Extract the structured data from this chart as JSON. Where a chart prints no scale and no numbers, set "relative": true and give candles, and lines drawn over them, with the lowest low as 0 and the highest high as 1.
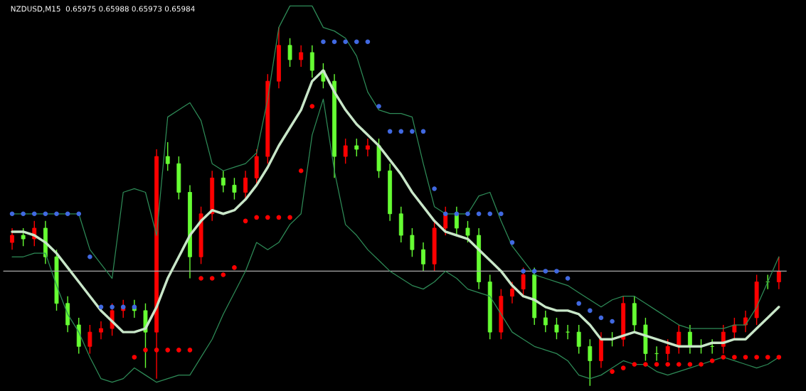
{
  "chart_data": {
    "type": "candlestick",
    "relative": true,
    "title": "NZDUSD,M15  0.65975 0.65988 0.65973 0.65984",
    "grid": false,
    "legend": false,
    "categories": [
      null,
      null,
      null,
      null,
      null,
      null,
      null,
      null,
      null,
      null,
      null,
      null,
      null,
      null,
      null,
      null,
      null,
      null,
      null,
      null,
      null,
      null,
      null,
      null,
      null,
      null,
      null,
      null,
      null,
      null,
      null,
      null,
      null,
      null,
      null,
      null,
      null,
      null,
      null,
      null,
      null,
      null,
      null,
      null,
      null,
      null,
      null,
      null,
      null,
      null,
      null,
      null,
      null,
      null,
      null,
      null,
      null,
      null,
      null,
      null,
      null,
      null,
      null,
      null,
      null,
      null,
      null,
      null,
      null,
      null
    ],
    "ohlc": [
      [
        0.4,
        0.44,
        0.38,
        0.42
      ],
      [
        0.42,
        0.44,
        0.39,
        0.41
      ],
      [
        0.41,
        0.46,
        0.39,
        0.44
      ],
      [
        0.44,
        0.46,
        0.34,
        0.36
      ],
      [
        0.36,
        0.38,
        0.21,
        0.23
      ],
      [
        0.23,
        0.25,
        0.15,
        0.17
      ],
      [
        0.17,
        0.19,
        0.09,
        0.11
      ],
      [
        0.11,
        0.17,
        0.09,
        0.15
      ],
      [
        0.15,
        0.18,
        0.13,
        0.16
      ],
      [
        0.16,
        0.23,
        0.14,
        0.21
      ],
      [
        0.21,
        0.24,
        0.19,
        0.22
      ],
      [
        0.22,
        0.24,
        0.19,
        0.21
      ],
      [
        0.21,
        0.23,
        0.05,
        0.15
      ],
      [
        0.15,
        0.66,
        0.02,
        0.64
      ],
      [
        0.64,
        0.68,
        0.6,
        0.62
      ],
      [
        0.62,
        0.64,
        0.52,
        0.54
      ],
      [
        0.54,
        0.56,
        0.3,
        0.36
      ],
      [
        0.36,
        0.5,
        0.34,
        0.48
      ],
      [
        0.48,
        0.6,
        0.46,
        0.58
      ],
      [
        0.58,
        0.6,
        0.54,
        0.56
      ],
      [
        0.56,
        0.58,
        0.52,
        0.54
      ],
      [
        0.54,
        0.6,
        0.52,
        0.58
      ],
      [
        0.58,
        0.66,
        0.56,
        0.64
      ],
      [
        0.64,
        0.87,
        0.62,
        0.85
      ],
      [
        0.85,
        1.0,
        0.83,
        0.95
      ],
      [
        0.95,
        0.97,
        0.89,
        0.91
      ],
      [
        0.91,
        0.95,
        0.89,
        0.93
      ],
      [
        0.93,
        0.95,
        0.86,
        0.88
      ],
      [
        0.88,
        0.9,
        0.83,
        0.85
      ],
      [
        0.85,
        0.87,
        0.58,
        0.64
      ],
      [
        0.64,
        0.69,
        0.62,
        0.67
      ],
      [
        0.67,
        0.69,
        0.64,
        0.66
      ],
      [
        0.66,
        0.69,
        0.64,
        0.67
      ],
      [
        0.67,
        0.69,
        0.58,
        0.6
      ],
      [
        0.6,
        0.62,
        0.46,
        0.48
      ],
      [
        0.48,
        0.5,
        0.4,
        0.42
      ],
      [
        0.42,
        0.44,
        0.36,
        0.38
      ],
      [
        0.38,
        0.4,
        0.32,
        0.34
      ],
      [
        0.34,
        0.46,
        0.32,
        0.44
      ],
      [
        0.44,
        0.5,
        0.42,
        0.48
      ],
      [
        0.48,
        0.5,
        0.42,
        0.44
      ],
      [
        0.44,
        0.46,
        0.4,
        0.42
      ],
      [
        0.42,
        0.44,
        0.27,
        0.29
      ],
      [
        0.29,
        0.31,
        0.13,
        0.15
      ],
      [
        0.15,
        0.27,
        0.13,
        0.25
      ],
      [
        0.25,
        0.29,
        0.23,
        0.27
      ],
      [
        0.27,
        0.33,
        0.25,
        0.31
      ],
      [
        0.31,
        0.33,
        0.17,
        0.19
      ],
      [
        0.19,
        0.21,
        0.15,
        0.17
      ],
      [
        0.17,
        0.19,
        0.13,
        0.15
      ],
      [
        0.15,
        0.17,
        0.13,
        0.15
      ],
      [
        0.15,
        0.17,
        0.09,
        0.11
      ],
      [
        0.11,
        0.13,
        0.0,
        0.07
      ],
      [
        0.07,
        0.15,
        0.05,
        0.13
      ],
      [
        0.13,
        0.15,
        0.11,
        0.13
      ],
      [
        0.13,
        0.25,
        0.11,
        0.23
      ],
      [
        0.23,
        0.25,
        0.15,
        0.17
      ],
      [
        0.17,
        0.19,
        0.07,
        0.09
      ],
      [
        0.09,
        0.11,
        0.07,
        0.09
      ],
      [
        0.09,
        0.13,
        0.07,
        0.11
      ],
      [
        0.11,
        0.17,
        0.09,
        0.15
      ],
      [
        0.15,
        0.17,
        0.09,
        0.11
      ],
      [
        0.11,
        0.13,
        0.09,
        0.11
      ],
      [
        0.11,
        0.13,
        0.09,
        0.11
      ],
      [
        0.11,
        0.17,
        0.09,
        0.15
      ],
      [
        0.15,
        0.19,
        0.13,
        0.17
      ],
      [
        0.17,
        0.21,
        0.15,
        0.19
      ],
      [
        0.19,
        0.31,
        0.17,
        0.29
      ],
      [
        0.29,
        0.31,
        0.27,
        0.29
      ],
      [
        0.29,
        0.36,
        0.27,
        0.32
      ]
    ],
    "colors": [
      "#ff0000",
      "#66ff33",
      "#ff0000",
      "#66ff33",
      "#66ff33",
      "#66ff33",
      "#66ff33",
      "#ff0000",
      "#ff0000",
      "#ff0000",
      "#ff0000",
      "#66ff33",
      "#66ff33",
      "#ff0000",
      "#66ff33",
      "#66ff33",
      "#66ff33",
      "#ff0000",
      "#ff0000",
      "#66ff33",
      "#66ff33",
      "#ff0000",
      "#ff0000",
      "#ff0000",
      "#ff0000",
      "#66ff33",
      "#ff0000",
      "#66ff33",
      "#66ff33",
      "#66ff33",
      "#ff0000",
      "#66ff33",
      "#ff0000",
      "#66ff33",
      "#66ff33",
      "#66ff33",
      "#66ff33",
      "#66ff33",
      "#ff0000",
      "#ff0000",
      "#66ff33",
      "#66ff33",
      "#66ff33",
      "#66ff33",
      "#ff0000",
      "#ff0000",
      "#ff0000",
      "#66ff33",
      "#66ff33",
      "#66ff33",
      "#66ff33",
      "#66ff33",
      "#66ff33",
      "#ff0000",
      "#66ff33",
      "#ff0000",
      "#66ff33",
      "#66ff33",
      "#66ff33",
      "#ff0000",
      "#ff0000",
      "#66ff33",
      "#66ff33",
      "#66ff33",
      "#ff0000",
      "#ff0000",
      "#ff0000",
      "#ff0000",
      "#66ff33",
      "#ff0000"
    ],
    "series": [
      {
        "type": "line",
        "color": "#2e8b57",
        "values": [
          0.48,
          0.48,
          0.48,
          0.48,
          0.48,
          0.48,
          0.48,
          0.38,
          0.34,
          0.3,
          0.54,
          0.55,
          0.54,
          0.42,
          0.75,
          0.77,
          0.79,
          0.74,
          0.62,
          0.6,
          0.61,
          0.62,
          0.65,
          0.8,
          1.0,
          1.06,
          1.06,
          1.06,
          1.0,
          0.99,
          0.97,
          0.92,
          0.82,
          0.77,
          0.76,
          0.76,
          0.75,
          0.62,
          0.5,
          0.48,
          0.48,
          0.48,
          0.53,
          0.54,
          0.46,
          0.39,
          0.35,
          0.31,
          0.3,
          0.29,
          0.28,
          0.26,
          0.24,
          0.22,
          0.24,
          0.25,
          0.25,
          0.23,
          0.21,
          0.19,
          0.17,
          0.16,
          0.16,
          0.16,
          0.16,
          0.17,
          0.17,
          0.22,
          0.29,
          0.36
        ]
      },
      {
        "type": "line",
        "color": "#2e8b57",
        "values": [
          0.36,
          0.36,
          0.37,
          0.37,
          0.28,
          0.2,
          0.15,
          0.08,
          0.02,
          0.01,
          0.02,
          0.05,
          0.03,
          0.01,
          0.02,
          0.03,
          0.03,
          0.08,
          0.13,
          0.2,
          0.26,
          0.32,
          0.4,
          0.38,
          0.4,
          0.45,
          0.48,
          0.7,
          0.8,
          0.6,
          0.45,
          0.42,
          0.38,
          0.35,
          0.32,
          0.3,
          0.28,
          0.27,
          0.29,
          0.32,
          0.3,
          0.27,
          0.26,
          0.25,
          0.2,
          0.15,
          0.13,
          0.11,
          0.1,
          0.09,
          0.07,
          0.03,
          0.02,
          0.03,
          0.05,
          0.07,
          0.06,
          0.06,
          0.04,
          0.03,
          0.04,
          0.05,
          0.06,
          0.07,
          0.08,
          0.07,
          0.06,
          0.05,
          0.06,
          0.08
        ]
      },
      {
        "type": "line",
        "color": "#c8e6c8",
        "values": [
          0.43,
          0.43,
          0.42,
          0.4,
          0.37,
          0.33,
          0.29,
          0.25,
          0.21,
          0.18,
          0.15,
          0.15,
          0.16,
          0.22,
          0.3,
          0.36,
          0.42,
          0.46,
          0.49,
          0.48,
          0.49,
          0.52,
          0.56,
          0.61,
          0.67,
          0.72,
          0.77,
          0.85,
          0.88,
          0.82,
          0.77,
          0.73,
          0.7,
          0.67,
          0.63,
          0.59,
          0.54,
          0.5,
          0.46,
          0.43,
          0.42,
          0.41,
          0.38,
          0.35,
          0.32,
          0.28,
          0.25,
          0.24,
          0.22,
          0.21,
          0.21,
          0.2,
          0.17,
          0.13,
          0.13,
          0.14,
          0.15,
          0.14,
          0.13,
          0.12,
          0.11,
          0.11,
          0.11,
          0.12,
          0.12,
          0.13,
          0.13,
          0.16,
          0.19,
          0.22
        ]
      },
      {
        "type": "scatter",
        "marker": "circle",
        "color": "#4169e1",
        "values": [
          0.48,
          0.48,
          0.48,
          0.48,
          0.48,
          0.48,
          0.48,
          0.36,
          0.22,
          0.22,
          0.22,
          0.22,
          null,
          null,
          null,
          null,
          null,
          null,
          null,
          null,
          null,
          null,
          null,
          null,
          null,
          null,
          null,
          null,
          0.96,
          0.96,
          0.96,
          0.96,
          0.96,
          0.78,
          0.71,
          0.71,
          0.71,
          0.71,
          0.55,
          0.48,
          0.48,
          0.48,
          0.48,
          0.48,
          0.48,
          0.4,
          0.32,
          0.32,
          0.32,
          0.32,
          0.3,
          0.23,
          0.21,
          0.19,
          0.18,
          null,
          null,
          null,
          null,
          null,
          null,
          null,
          null,
          null,
          null,
          null,
          null,
          null,
          null,
          null
        ]
      },
      {
        "type": "scatter",
        "marker": "circle",
        "color": "#ff0000",
        "values": [
          null,
          null,
          null,
          null,
          null,
          null,
          null,
          null,
          null,
          null,
          null,
          0.08,
          0.1,
          0.1,
          0.1,
          0.1,
          0.1,
          0.3,
          0.3,
          0.31,
          0.33,
          0.46,
          0.47,
          0.47,
          0.47,
          0.47,
          0.6,
          0.78,
          null,
          null,
          null,
          null,
          null,
          null,
          null,
          null,
          null,
          null,
          null,
          null,
          null,
          null,
          null,
          null,
          null,
          null,
          null,
          null,
          null,
          null,
          null,
          null,
          null,
          null,
          0.04,
          0.05,
          0.06,
          0.06,
          0.06,
          0.06,
          0.06,
          0.06,
          0.06,
          0.07,
          0.08,
          0.08,
          0.08,
          0.08,
          0.08,
          0.08
        ]
      }
    ],
    "ref_lines": [
      {
        "axis": "y",
        "value": 0.32,
        "color": "#a9a9a9"
      }
    ]
  }
}
